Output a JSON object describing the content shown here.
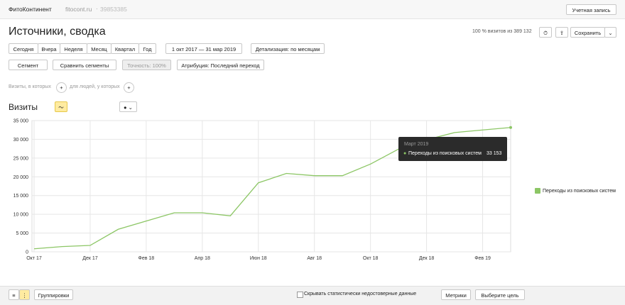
{
  "header": {
    "account": "ФитоКонтинент",
    "site": "fitocont.ru",
    "separator": "·",
    "counter_id": "39853385",
    "account_button": "Учетная запись"
  },
  "title": "Источники, сводка",
  "sampling": "100 % визитов из 389 132",
  "save_button": "Сохранить",
  "periods": [
    "Сегодня",
    "Вчера",
    "Неделя",
    "Месяц",
    "Квартал",
    "Год"
  ],
  "date_range": "1 окт 2017 — 31 мар 2019",
  "detail": "Детализация: по месяцам",
  "filters": {
    "segment": "Сегмент",
    "compare": "Сравнить сегменты",
    "accuracy": "Точность: 100%",
    "attribution": "Атрибуция: Последний переход"
  },
  "conditions": {
    "visits": "Визиты, в которых",
    "people": "для людей, у которых"
  },
  "metric_label": "Визиты",
  "chart_data": {
    "type": "line",
    "categories": [
      "Окт 17",
      null,
      "Дек 17",
      null,
      "Фев 18",
      null,
      "Апр 18",
      null,
      "Июн 18",
      null,
      "Авг 18",
      null,
      "Окт 18",
      null,
      "Дек 18",
      null,
      "Фев 19",
      null
    ],
    "series": [
      {
        "name": "Переходы из поисковых систем",
        "color": "#8cc665",
        "values": [
          800,
          1400,
          1700,
          6000,
          8200,
          10400,
          10400,
          9600,
          18400,
          20900,
          20300,
          20300,
          23400,
          27400,
          29900,
          31800,
          32500,
          33153
        ],
        "value_labels": [
          null,
          null,
          null,
          null,
          null,
          null,
          null,
          null,
          null,
          null,
          null,
          null,
          null,
          null,
          null,
          null,
          null,
          "33 153"
        ]
      }
    ],
    "ylim": [
      0,
      35000
    ],
    "yticks": [
      0,
      {
        "value": 5000,
        "label": "5 000"
      },
      {
        "value": 10000,
        "label": "10 000"
      },
      {
        "value": 15000,
        "label": "15 000"
      },
      {
        "value": 20000,
        "label": "20 000"
      },
      {
        "value": 25000,
        "label": "25 000"
      },
      {
        "value": 30000,
        "label": "30 000"
      },
      {
        "value": 35000,
        "label": "35 000"
      }
    ],
    "grid": true,
    "legend": "right",
    "tooltip": {
      "title": "Март 2019"
    }
  },
  "footer": {
    "groupings": "Группировки",
    "hide_unreliable": "Скрывать статистически недостоверные данные",
    "metrics": "Метрики",
    "goal": "Выберите цель"
  }
}
